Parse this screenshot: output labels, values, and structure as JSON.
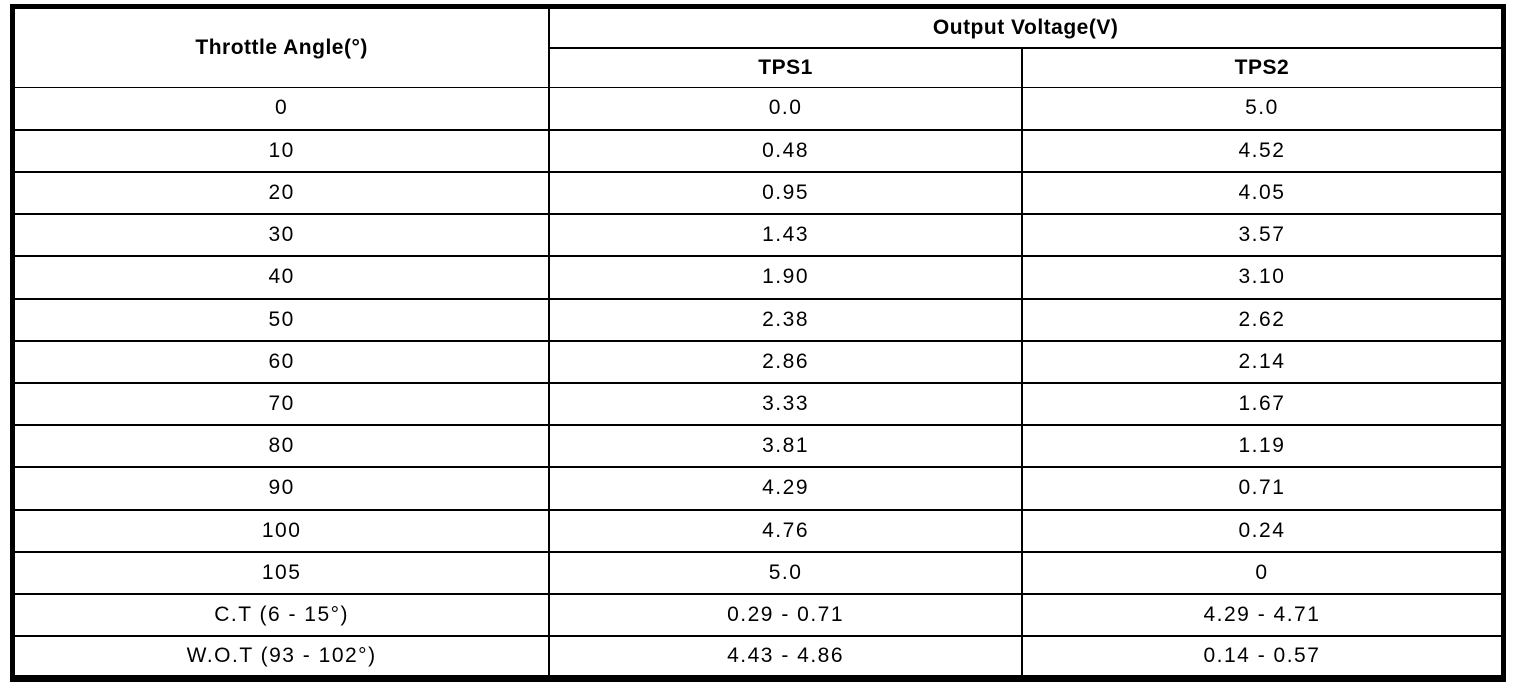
{
  "table": {
    "throttle_angle_header": "Throttle Angle(°)",
    "output_voltage_header": "Output Voltage(V)",
    "tps1_header": "TPS1",
    "tps2_header": "TPS2",
    "rows": [
      {
        "angle": "0",
        "tps1": "0.0",
        "tps2": "5.0"
      },
      {
        "angle": "10",
        "tps1": "0.48",
        "tps2": "4.52"
      },
      {
        "angle": "20",
        "tps1": "0.95",
        "tps2": "4.05"
      },
      {
        "angle": "30",
        "tps1": "1.43",
        "tps2": "3.57"
      },
      {
        "angle": "40",
        "tps1": "1.90",
        "tps2": "3.10"
      },
      {
        "angle": "50",
        "tps1": "2.38",
        "tps2": "2.62"
      },
      {
        "angle": "60",
        "tps1": "2.86",
        "tps2": "2.14"
      },
      {
        "angle": "70",
        "tps1": "3.33",
        "tps2": "1.67"
      },
      {
        "angle": "80",
        "tps1": "3.81",
        "tps2": "1.19"
      },
      {
        "angle": "90",
        "tps1": "4.29",
        "tps2": "0.71"
      },
      {
        "angle": "100",
        "tps1": "4.76",
        "tps2": "0.24"
      },
      {
        "angle": "105",
        "tps1": "5.0",
        "tps2": "0"
      },
      {
        "angle": "C.T (6 - 15°)",
        "tps1": "0.29 - 0.71",
        "tps2": "4.29 - 4.71"
      },
      {
        "angle": "W.O.T (93 - 102°)",
        "tps1": "4.43 - 4.86",
        "tps2": "0.14 - 0.57"
      }
    ]
  },
  "chart_data": {
    "type": "table",
    "columns": [
      "Throttle Angle(°)",
      "TPS1",
      "TPS2"
    ],
    "column_group": {
      "label": "Output Voltage(V)",
      "spans": [
        "TPS1",
        "TPS2"
      ]
    },
    "rows": [
      [
        "0",
        "0.0",
        "5.0"
      ],
      [
        "10",
        "0.48",
        "4.52"
      ],
      [
        "20",
        "0.95",
        "4.05"
      ],
      [
        "30",
        "1.43",
        "3.57"
      ],
      [
        "40",
        "1.90",
        "3.10"
      ],
      [
        "50",
        "2.38",
        "2.62"
      ],
      [
        "60",
        "2.86",
        "2.14"
      ],
      [
        "70",
        "3.33",
        "1.67"
      ],
      [
        "80",
        "3.81",
        "1.19"
      ],
      [
        "90",
        "4.29",
        "0.71"
      ],
      [
        "100",
        "4.76",
        "0.24"
      ],
      [
        "105",
        "5.0",
        "0"
      ],
      [
        "C.T (6 - 15°)",
        "0.29 - 0.71",
        "4.29 - 4.71"
      ],
      [
        "W.O.T (93 - 102°)",
        "4.43 - 4.86",
        "0.14 - 0.57"
      ]
    ],
    "border_color": "#000000",
    "background_color": "#ffffff"
  }
}
